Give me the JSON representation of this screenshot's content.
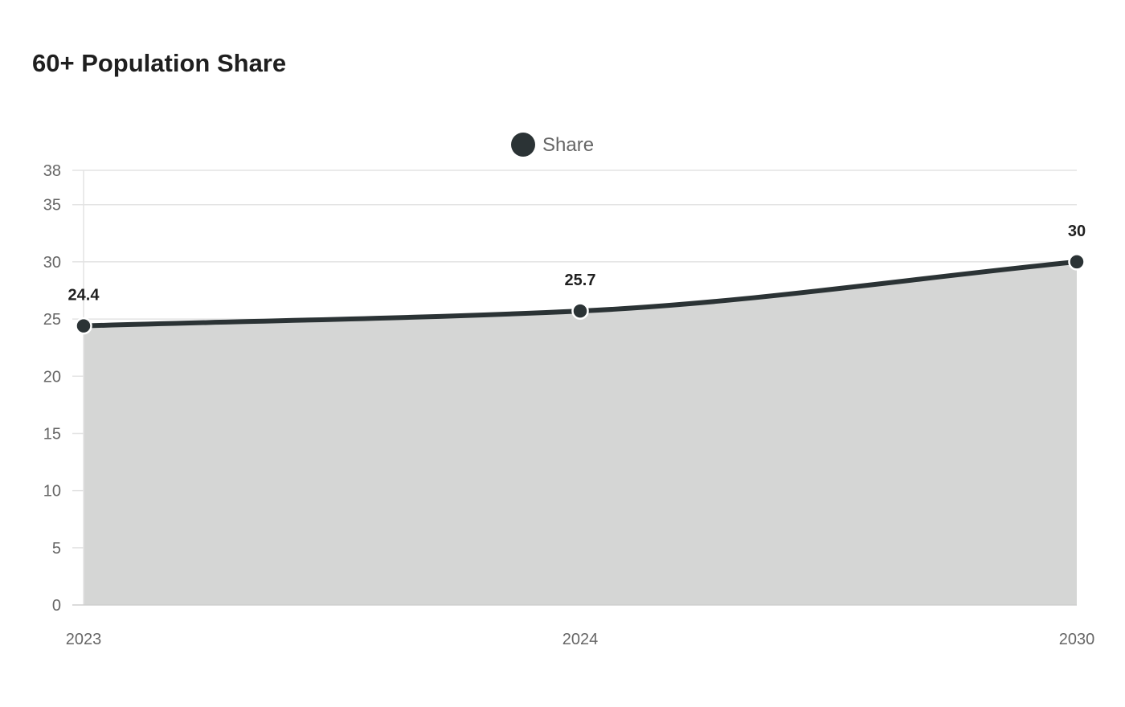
{
  "chart_data": {
    "type": "area",
    "title": "60+ Population Share",
    "categories": [
      "2023",
      "2024",
      "2030"
    ],
    "series": [
      {
        "name": "Share",
        "values": [
          24.4,
          25.7,
          30
        ]
      }
    ],
    "data_labels": [
      "24.4",
      "25.7",
      "30"
    ],
    "y_ticks": [
      0,
      5,
      10,
      15,
      20,
      25,
      30,
      35,
      38
    ],
    "ylim": [
      0,
      38
    ],
    "xlabel": "",
    "ylabel": "",
    "legend": {
      "position": "top",
      "label": "Share"
    },
    "grid": true,
    "colors": {
      "line": "#2b3335",
      "fill": "#d5d6d5",
      "grid": "#e3e3e3",
      "tick_text": "#666666",
      "marker_stroke": "#ffffff"
    }
  }
}
